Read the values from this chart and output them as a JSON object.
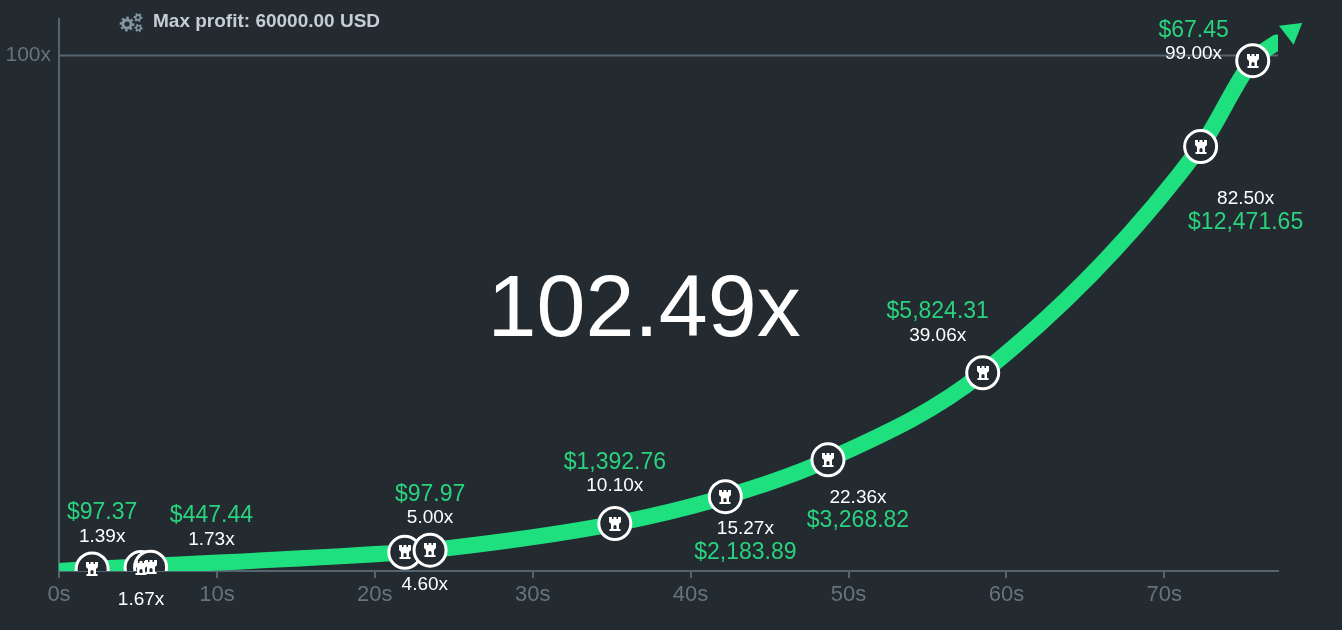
{
  "chart_data": {
    "type": "line",
    "title": "Max profit: 60000.00 USD",
    "annotations": [
      "102.49x",
      {
        "text": "$97.37",
        "x": 2.1,
        "y": 1.39
      },
      {
        "text": "$447.44",
        "x": 5.8,
        "y": 1.73
      },
      {
        "text": "$97.97",
        "x": 23.5,
        "y": 5
      },
      {
        "text": "$1,392.76",
        "x": 35.2,
        "y": 10.1
      },
      {
        "text": "$2,183.89",
        "x": 42.2,
        "y": 15.27
      },
      {
        "text": "$3,268.82",
        "x": 48.7,
        "y": 22.36
      },
      {
        "text": "$5,824.31",
        "x": 58.5,
        "y": 39.06
      },
      {
        "text": "$12,471.65",
        "x": 72.3,
        "y": 82.5
      },
      {
        "text": "$67.45",
        "x": 75.6,
        "y": 99
      }
    ],
    "series": [
      {
        "type": "line",
        "color": "#1fe07e",
        "marker": "circle",
        "x": [
          0,
          2.1,
          21.9,
          23.5,
          35.2,
          42.2,
          48.7,
          58.5,
          72.3,
          75.6,
          77.1
        ],
        "values": [
          1,
          1.39,
          4.6,
          5,
          10.1,
          15.27,
          22.36,
          39.06,
          82.5,
          99,
          102.49
        ],
        "value_labels": [
          null,
          "1.39x",
          "4.60x",
          "5.00x",
          "10.10x",
          "15.27x",
          "22.36x",
          "39.06x",
          "82.50x",
          "99.00x",
          null
        ]
      },
      {
        "type": "scatter",
        "color": "#ffffff",
        "marker": "circle",
        "x": [
          5.2,
          5.8
        ],
        "values": [
          1.67,
          1.73
        ],
        "value_labels": [
          "1.67x",
          "1.73x"
        ]
      }
    ],
    "xlim": [
      0,
      77.2
    ],
    "xticks": [
      {
        "value": 0,
        "label": "0s"
      },
      {
        "value": 10,
        "label": "10s"
      },
      {
        "value": 20,
        "label": "20s"
      },
      {
        "value": 30,
        "label": "30s"
      },
      {
        "value": 40,
        "label": "40s"
      },
      {
        "value": 50,
        "label": "50s"
      },
      {
        "value": 60,
        "label": "60s"
      },
      {
        "value": 70,
        "label": "70s"
      }
    ],
    "ylim": [
      1,
      107
    ],
    "ref_lines": [
      {
        "axis": "y",
        "value": 100,
        "label": "100x"
      }
    ]
  }
}
